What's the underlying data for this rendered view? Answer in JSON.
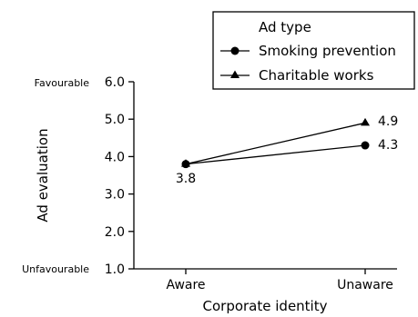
{
  "chart_data": {
    "type": "line",
    "categories": [
      "Aware",
      "Unaware"
    ],
    "series": [
      {
        "name": "Smoking prevention",
        "marker": "circle",
        "values": [
          3.8,
          4.3
        ]
      },
      {
        "name": "Charitable works",
        "marker": "triangle",
        "values": [
          3.8,
          4.9
        ]
      }
    ],
    "title": "",
    "xlabel": "Corporate identity",
    "ylabel": "Ad evaluation",
    "ylim": [
      1.0,
      6.0
    ],
    "yticks": [
      "1.0",
      "2.0",
      "3.0",
      "4.0",
      "5.0",
      "6.0"
    ],
    "y_top_label": "Favourable",
    "y_bottom_label": "Unfavourable",
    "legend_title": "Ad type",
    "legend_position": "top-right",
    "annotations": [
      "3.8",
      "4.3",
      "4.9"
    ],
    "grid": false,
    "color": "#000000"
  }
}
